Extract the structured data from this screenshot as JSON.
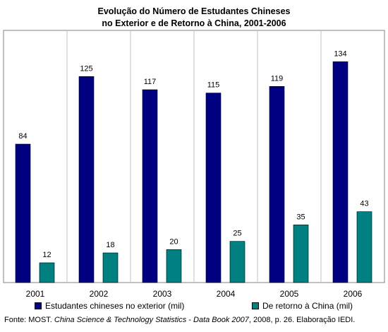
{
  "header": {
    "title_line1": "Evolução do Número de Estudantes Chineses",
    "title_line2": "no Exterior e de Retorno à China, 2001-2006"
  },
  "legend": {
    "series1": "Estudantes chineses no exterior (mil)",
    "series2": "De retorno à China (mil)"
  },
  "source": {
    "prefix": "Fonte: MOST. ",
    "italic": "China Science & Technology Statistics - Data Book 2007",
    "suffix": ", 2008, p. 26. Elaboração IEDI."
  },
  "colors": {
    "series1": "#000080",
    "series2": "#008080",
    "frame": "#808080",
    "separator": "#c0c0c0"
  },
  "chart_data": {
    "type": "bar",
    "categories": [
      "2001",
      "2002",
      "2003",
      "2004",
      "2005",
      "2006"
    ],
    "series": [
      {
        "name": "Estudantes chineses no exterior (mil)",
        "values": [
          84,
          125,
          117,
          115,
          119,
          134
        ]
      },
      {
        "name": "De retorno à China (mil)",
        "values": [
          12,
          18,
          20,
          25,
          35,
          43
        ]
      }
    ],
    "ylim": [
      0,
      140
    ],
    "grid": false,
    "legend_position": "bottom"
  }
}
